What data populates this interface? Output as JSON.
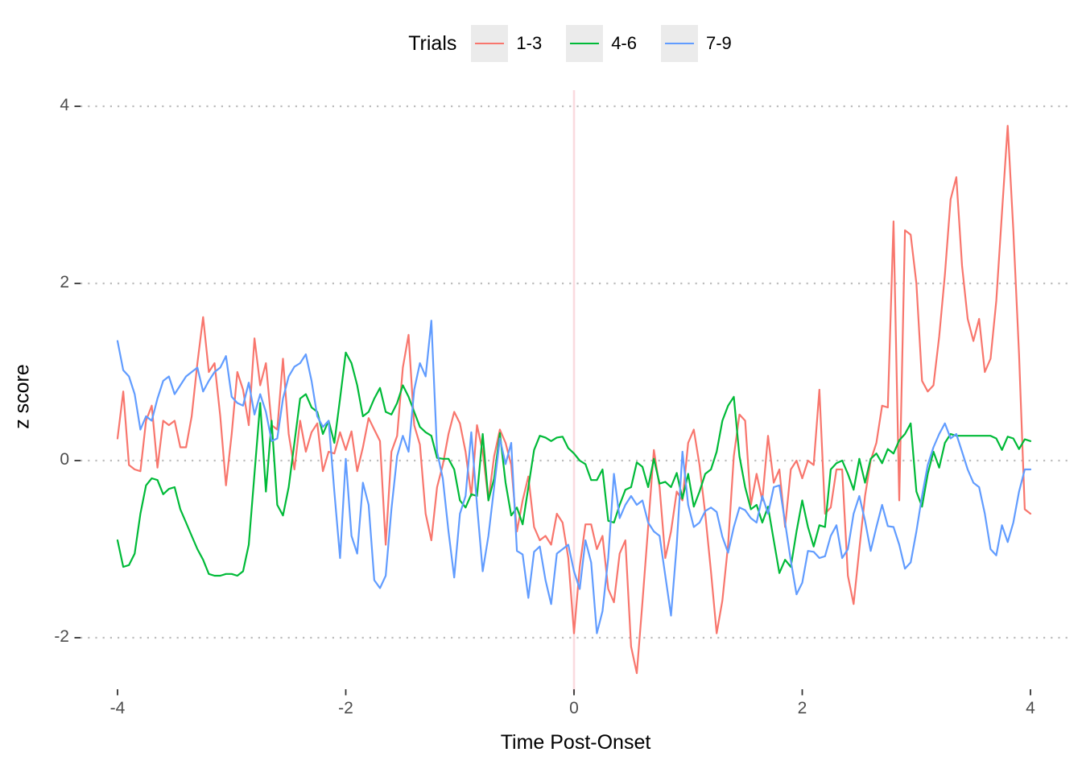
{
  "chart_data": {
    "type": "line",
    "legend": {
      "title": "Trials",
      "position": "top",
      "key_background": "#ebebeb"
    },
    "xlabel": "Time Post-Onset",
    "ylabel": "z score",
    "xlim": [
      -4.35,
      4.35
    ],
    "ylim": [
      -2.6,
      4.18
    ],
    "xticks": [
      -4,
      -2,
      0,
      2,
      4
    ],
    "yticks": [
      4,
      2,
      0,
      -2
    ],
    "grid": "horizontal dotted at yticks",
    "gridline_color": "#bdbdbd",
    "axis_text_color": "#4d4d4d",
    "tick_mark_color": "#333333",
    "vline": {
      "x": 0,
      "color": "#fadbdf"
    },
    "x": [
      -4,
      -3.95,
      -3.9,
      -3.85,
      -3.8,
      -3.75,
      -3.7,
      -3.65,
      -3.6,
      -3.55,
      -3.5,
      -3.45,
      -3.4,
      -3.35,
      -3.3,
      -3.25,
      -3.2,
      -3.15,
      -3.1,
      -3.05,
      -3,
      -2.95,
      -2.9,
      -2.85,
      -2.8,
      -2.75,
      -2.7,
      -2.65,
      -2.6,
      -2.55,
      -2.5,
      -2.45,
      -2.4,
      -2.35,
      -2.3,
      -2.25,
      -2.2,
      -2.15,
      -2.1,
      -2.05,
      -2,
      -1.95,
      -1.9,
      -1.85,
      -1.8,
      -1.75,
      -1.7,
      -1.65,
      -1.6,
      -1.55,
      -1.5,
      -1.45,
      -1.4,
      -1.35,
      -1.3,
      -1.25,
      -1.2,
      -1.15,
      -1.1,
      -1.05,
      -1,
      -0.95,
      -0.9,
      -0.85,
      -0.8,
      -0.75,
      -0.7,
      -0.65,
      -0.6,
      -0.55,
      -0.5,
      -0.45,
      -0.4,
      -0.35,
      -0.3,
      -0.25,
      -0.2,
      -0.15,
      -0.1,
      -0.05,
      0,
      0.05,
      0.1,
      0.15,
      0.2,
      0.25,
      0.3,
      0.35,
      0.4,
      0.45,
      0.5,
      0.55,
      0.6,
      0.65,
      0.7,
      0.75,
      0.8,
      0.85,
      0.9,
      0.95,
      1,
      1.05,
      1.1,
      1.15,
      1.2,
      1.25,
      1.3,
      1.35,
      1.4,
      1.45,
      1.5,
      1.55,
      1.6,
      1.65,
      1.7,
      1.75,
      1.8,
      1.85,
      1.9,
      1.95,
      2,
      2.05,
      2.1,
      2.15,
      2.2,
      2.25,
      2.3,
      2.35,
      2.4,
      2.45,
      2.5,
      2.55,
      2.6,
      2.65,
      2.7,
      2.75,
      2.8,
      2.85,
      2.9,
      2.95,
      3,
      3.05,
      3.1,
      3.15,
      3.2,
      3.25,
      3.3,
      3.35,
      3.4,
      3.45,
      3.5,
      3.55,
      3.6,
      3.65,
      3.7,
      3.75,
      3.8,
      3.85,
      3.9,
      3.95,
      4
    ],
    "series": [
      {
        "name": "1-3",
        "color": "#F8766D",
        "values": [
          0.25,
          0.78,
          -0.05,
          -0.1,
          -0.12,
          0.45,
          0.62,
          -0.08,
          0.45,
          0.4,
          0.45,
          0.15,
          0.15,
          0.5,
          1.1,
          1.62,
          1.0,
          1.1,
          0.5,
          -0.28,
          0.3,
          1.0,
          0.8,
          0.4,
          1.38,
          0.85,
          1.1,
          0.4,
          0.35,
          1.15,
          0.3,
          -0.1,
          0.45,
          0.1,
          0.32,
          0.42,
          -0.12,
          0.1,
          0.08,
          0.32,
          0.12,
          0.33,
          -0.12,
          0.15,
          0.48,
          0.35,
          0.22,
          -0.95,
          0.1,
          0.28,
          1.05,
          1.42,
          0.4,
          0.18,
          -0.6,
          -0.9,
          -0.3,
          -0.05,
          0.3,
          0.55,
          0.42,
          0.1,
          -0.4,
          0.4,
          0.1,
          -0.45,
          0.05,
          0.35,
          0.2,
          -0.05,
          -0.8,
          -0.45,
          -0.18,
          -0.75,
          -0.9,
          -0.85,
          -0.95,
          -0.6,
          -0.7,
          -1.1,
          -1.95,
          -1.2,
          -0.72,
          -0.72,
          -1.0,
          -0.85,
          -1.45,
          -1.6,
          -1.05,
          -0.9,
          -2.1,
          -2.4,
          -1.6,
          -0.75,
          0.12,
          -0.3,
          -1.1,
          -0.8,
          -0.35,
          -0.45,
          0.2,
          0.35,
          -0.05,
          -0.6,
          -1.25,
          -1.95,
          -1.58,
          -0.95,
          0.05,
          0.52,
          0.45,
          -0.5,
          -0.15,
          -0.45,
          0.28,
          -0.25,
          -0.1,
          -0.75,
          -0.1,
          0.0,
          -0.2,
          0.0,
          -0.05,
          0.8,
          -0.6,
          -0.53,
          -0.1,
          -0.1,
          -1.3,
          -1.62,
          -1.0,
          -0.4,
          0.0,
          0.2,
          0.62,
          0.6,
          2.7,
          -0.45,
          2.6,
          2.55,
          2.0,
          0.9,
          0.78,
          0.85,
          1.4,
          2.1,
          2.95,
          3.2,
          2.2,
          1.6,
          1.35,
          1.6,
          1.0,
          1.15,
          1.8,
          2.8,
          3.78,
          2.6,
          1.2,
          -0.55,
          -0.6
        ]
      },
      {
        "name": "4-6",
        "color": "#00BA38",
        "values": [
          -0.9,
          -1.2,
          -1.18,
          -1.05,
          -0.6,
          -0.28,
          -0.2,
          -0.22,
          -0.38,
          -0.32,
          -0.3,
          -0.55,
          -0.7,
          -0.85,
          -1.0,
          -1.12,
          -1.28,
          -1.3,
          -1.3,
          -1.28,
          -1.28,
          -1.3,
          -1.25,
          -0.95,
          -0.15,
          0.65,
          -0.35,
          0.45,
          -0.5,
          -0.62,
          -0.3,
          0.2,
          0.7,
          0.75,
          0.6,
          0.55,
          0.3,
          0.45,
          0.2,
          0.7,
          1.22,
          1.1,
          0.85,
          0.5,
          0.55,
          0.7,
          0.82,
          0.55,
          0.52,
          0.65,
          0.85,
          0.72,
          0.55,
          0.38,
          0.32,
          0.28,
          0.03,
          0.02,
          0.02,
          -0.1,
          -0.45,
          -0.53,
          -0.38,
          -0.4,
          0.3,
          -0.45,
          -0.2,
          0.31,
          -0.25,
          -0.62,
          -0.53,
          -0.72,
          -0.3,
          0.12,
          0.28,
          0.26,
          0.22,
          0.26,
          0.27,
          0.14,
          0.08,
          0.0,
          -0.04,
          -0.22,
          -0.22,
          -0.1,
          -0.68,
          -0.7,
          -0.5,
          -0.33,
          -0.3,
          -0.02,
          -0.07,
          -0.3,
          0.02,
          -0.26,
          -0.24,
          -0.3,
          -0.14,
          -0.43,
          -0.15,
          -0.52,
          -0.35,
          -0.15,
          -0.1,
          0.1,
          0.45,
          0.62,
          0.72,
          0.05,
          -0.3,
          -0.55,
          -0.5,
          -0.7,
          -0.52,
          -0.9,
          -1.27,
          -1.12,
          -1.2,
          -0.8,
          -0.45,
          -0.75,
          -0.97,
          -0.73,
          -0.75,
          -0.1,
          -0.03,
          0.0,
          -0.15,
          -0.33,
          0.02,
          -0.25,
          0.02,
          0.08,
          -0.03,
          0.13,
          0.08,
          0.23,
          0.3,
          0.42,
          -0.35,
          -0.52,
          -0.15,
          0.1,
          -0.08,
          0.2,
          0.3,
          0.28,
          0.28,
          0.28,
          0.28,
          0.28,
          0.28,
          0.28,
          0.25,
          0.12,
          0.27,
          0.25,
          0.13,
          0.24,
          0.22
        ]
      },
      {
        "name": "7-9",
        "color": "#619CFF",
        "values": [
          1.35,
          1.02,
          0.95,
          0.75,
          0.35,
          0.5,
          0.45,
          0.7,
          0.9,
          0.95,
          0.75,
          0.85,
          0.95,
          1.0,
          1.05,
          0.78,
          0.9,
          1.0,
          1.05,
          1.18,
          0.72,
          0.65,
          0.62,
          0.88,
          0.52,
          0.75,
          0.55,
          0.22,
          0.25,
          0.7,
          0.95,
          1.06,
          1.1,
          1.2,
          0.9,
          0.5,
          0.38,
          0.45,
          -0.35,
          -1.1,
          0.02,
          -0.85,
          -1.05,
          -0.25,
          -0.5,
          -1.35,
          -1.44,
          -1.3,
          -0.55,
          0.05,
          0.28,
          0.1,
          0.8,
          1.1,
          0.95,
          1.58,
          0.1,
          -0.2,
          -0.8,
          -1.32,
          -0.6,
          -0.4,
          0.32,
          -0.5,
          -1.25,
          -0.85,
          -0.3,
          0.25,
          -0.04,
          0.2,
          -1.02,
          -1.06,
          -1.55,
          -1.03,
          -0.97,
          -1.35,
          -1.62,
          -1.05,
          -1.0,
          -0.95,
          -1.25,
          -1.45,
          -0.9,
          -1.15,
          -1.95,
          -1.7,
          -1.1,
          -0.15,
          -0.65,
          -0.5,
          -0.4,
          -0.5,
          -0.45,
          -0.7,
          -0.8,
          -0.85,
          -1.3,
          -1.75,
          -0.95,
          0.1,
          -0.5,
          -0.75,
          -0.7,
          -0.57,
          -0.53,
          -0.58,
          -0.86,
          -1.04,
          -0.75,
          -0.53,
          -0.56,
          -0.65,
          -0.7,
          -0.4,
          -0.6,
          -0.3,
          -0.28,
          -0.7,
          -1.13,
          -1.51,
          -1.38,
          -1.02,
          -1.03,
          -1.1,
          -1.08,
          -0.85,
          -0.73,
          -1.1,
          -1.0,
          -0.6,
          -0.4,
          -0.68,
          -1.02,
          -0.75,
          -0.5,
          -0.74,
          -0.75,
          -0.95,
          -1.22,
          -1.15,
          -0.8,
          -0.4,
          -0.05,
          0.15,
          0.3,
          0.42,
          0.25,
          0.3,
          0.1,
          -0.1,
          -0.25,
          -0.3,
          -0.6,
          -1.0,
          -1.07,
          -0.73,
          -0.92,
          -0.7,
          -0.35,
          -0.1,
          -0.1
        ]
      }
    ]
  }
}
